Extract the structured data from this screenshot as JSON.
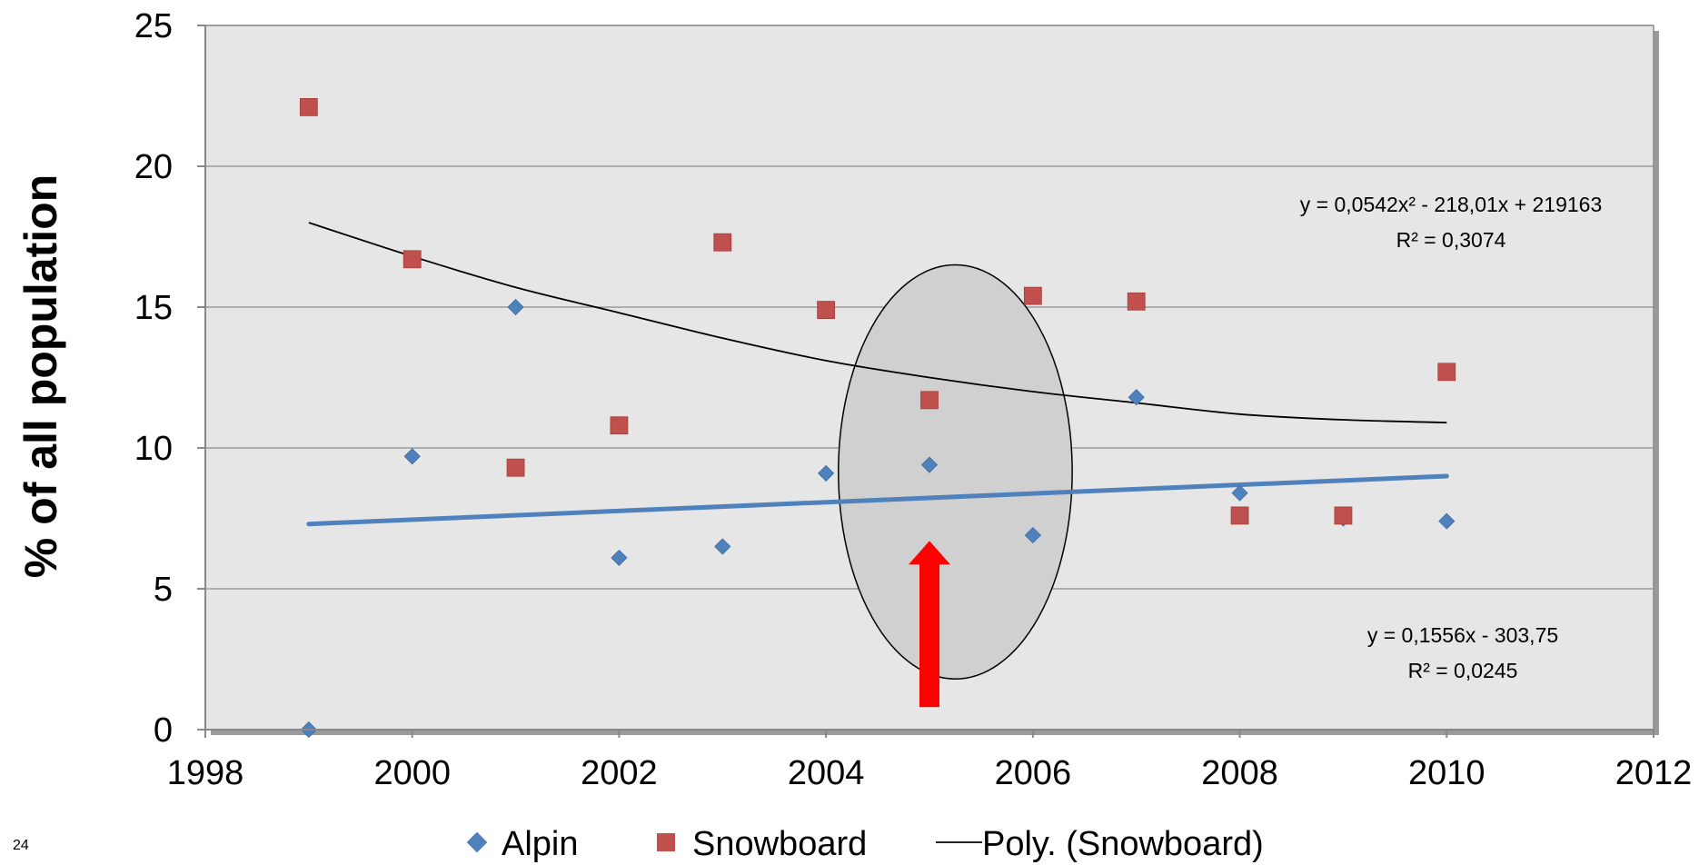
{
  "slide_number": "24",
  "colors": {
    "plot_bg": "#e6e6e6",
    "alpin": "#4f81bd",
    "snowboard": "#c0504d",
    "trend_alpin": "#4f81bd",
    "trend_snowboard": "#000000",
    "arrow": "#ff0000",
    "ellipse_fill": "#d0d0d0"
  },
  "chart_data": {
    "type": "scatter",
    "title": "",
    "xlabel": "",
    "ylabel": "% of all population",
    "xlim": [
      1998,
      2012
    ],
    "ylim": [
      0,
      25
    ],
    "xticks": [
      1998,
      2000,
      2002,
      2004,
      2006,
      2008,
      2010,
      2012
    ],
    "yticks": [
      0,
      5,
      10,
      15,
      20,
      25
    ],
    "grid": true,
    "legend_position": "bottom",
    "series": [
      {
        "name": "Alpin",
        "marker": "diamond",
        "x": [
          1999,
          2000,
          2001,
          2002,
          2003,
          2004,
          2005,
          2006,
          2007,
          2008,
          2009,
          2010
        ],
        "y": [
          0,
          9.7,
          15.0,
          6.1,
          6.5,
          9.1,
          9.4,
          6.9,
          11.8,
          8.4,
          7.5,
          7.4
        ]
      },
      {
        "name": "Snowboard",
        "marker": "square",
        "x": [
          1999,
          2000,
          2001,
          2002,
          2003,
          2004,
          2005,
          2006,
          2007,
          2008,
          2009,
          2010
        ],
        "y": [
          22.1,
          16.7,
          9.3,
          10.8,
          17.3,
          14.9,
          11.7,
          15.4,
          15.2,
          7.6,
          7.6,
          12.7
        ]
      }
    ],
    "trendlines": [
      {
        "name": "Poly. (Snowboard)",
        "type": "polynomial",
        "x": [
          1999,
          2000,
          2001,
          2002,
          2003,
          2004,
          2005,
          2006,
          2007,
          2008,
          2009,
          2010
        ],
        "y": [
          18.0,
          16.8,
          15.7,
          14.8,
          13.9,
          13.1,
          12.5,
          12.0,
          11.6,
          11.2,
          11.0,
          10.9
        ],
        "equation": "y = 0,0542x² - 218,01x + 219163",
        "r2": "R² = 0,3074"
      },
      {
        "type": "linear",
        "x": [
          1999,
          2010
        ],
        "y": [
          7.3,
          9.0
        ],
        "equation": "y = 0,1556x - 303,75",
        "r2": "R² = 0,0245"
      }
    ],
    "annotations": [
      {
        "type": "ellipse",
        "center": [
          2005.25,
          9.15
        ],
        "rx_years": 1.13,
        "ry_value": 7.35
      },
      {
        "type": "arrow",
        "x": 2005,
        "y_from": 0.8,
        "y_to": 6.7
      }
    ],
    "legend": [
      "Alpin",
      "Snowboard",
      "Poly. (Snowboard)"
    ]
  }
}
